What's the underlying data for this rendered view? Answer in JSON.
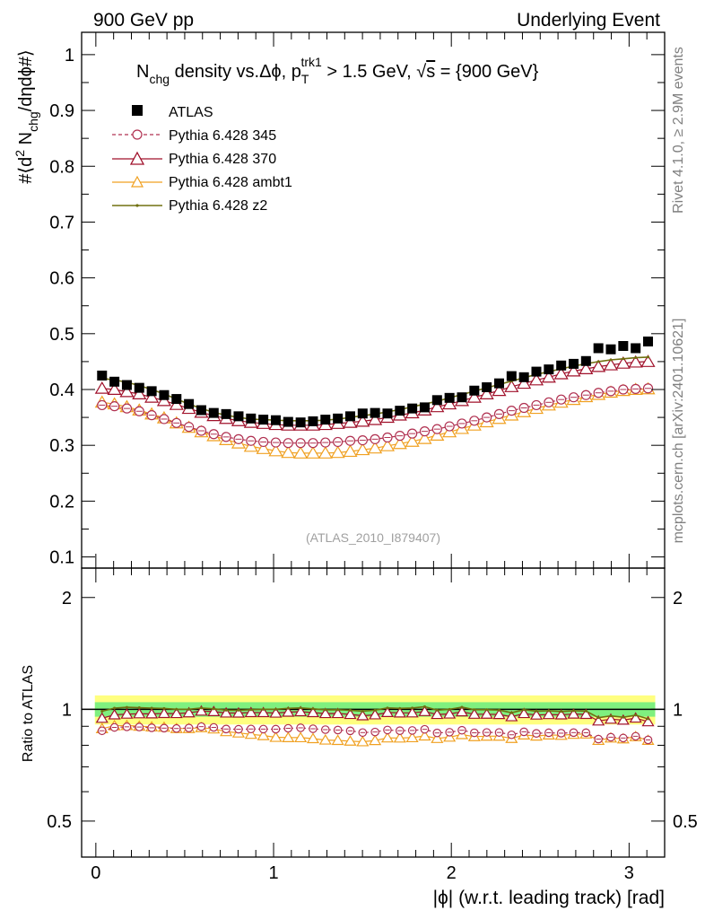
{
  "header": {
    "left": "900 GeV pp",
    "right": "Underlying Event"
  },
  "side_labels": {
    "rivet": "Rivet 4.1.0, ≥ 2.9M events",
    "mcplots": "mcplots.cern.ch [arXiv:2401.10621]"
  },
  "colors": {
    "atlas": "#000000",
    "p345": "#b03050",
    "p370": "#a0102a",
    "ambt1": "#f0a020",
    "z2": "#707010",
    "band_inner": "#7ff07f",
    "band_outer": "#ffff80"
  },
  "chart_data": [
    {
      "type": "scatter",
      "title": {
        "part1": "N",
        "part1_sub": "chg",
        "part2": " density vs.Δϕ, p",
        "part2_sub": "T",
        "part2_sup": "trk1",
        "part3": " > 1.5 GeV, ",
        "sqrt": "√",
        "s": "s",
        "part4": " = {900 GeV}"
      },
      "ylabel": "#⟨d² N_chg/dηdϕ#⟩",
      "ylabel_parts": {
        "a": "#⟨d",
        "a_sup": "2",
        "b": " N",
        "b_sub": "chg",
        "c": "/dηdϕ#⟩"
      },
      "ylim": [
        0.08,
        1.04
      ],
      "yticks": [
        "0.1",
        "0.2",
        "0.3",
        "0.4",
        "0.5",
        "0.6",
        "0.7",
        "0.8",
        "0.9",
        "1"
      ],
      "xlim": [
        -0.08,
        3.2
      ],
      "watermark": "(ATLAS_2010_I879407)",
      "legend_position": "top-left",
      "x": [
        0.0349,
        0.1047,
        0.1745,
        0.2443,
        0.3142,
        0.384,
        0.4538,
        0.5236,
        0.5934,
        0.6632,
        0.733,
        0.8029,
        0.8727,
        0.9425,
        1.0123,
        1.0821,
        1.1519,
        1.2217,
        1.2915,
        1.3614,
        1.4312,
        1.501,
        1.5708,
        1.6406,
        1.7104,
        1.7802,
        1.85,
        1.9199,
        1.9897,
        2.0595,
        2.1293,
        2.1991,
        2.2689,
        2.3387,
        2.4086,
        2.4784,
        2.5482,
        2.618,
        2.6878,
        2.7576,
        2.8274,
        2.8972,
        2.9671,
        3.0369,
        3.1067
      ],
      "series": [
        {
          "name": "ATLAS",
          "key": "atlas",
          "marker": "square",
          "values": [
            0.425,
            0.414,
            0.408,
            0.403,
            0.397,
            0.39,
            0.383,
            0.374,
            0.363,
            0.358,
            0.356,
            0.352,
            0.348,
            0.346,
            0.345,
            0.342,
            0.341,
            0.343,
            0.346,
            0.348,
            0.352,
            0.357,
            0.358,
            0.357,
            0.362,
            0.366,
            0.368,
            0.381,
            0.385,
            0.386,
            0.398,
            0.404,
            0.411,
            0.424,
            0.422,
            0.432,
            0.436,
            0.443,
            0.446,
            0.451,
            0.474,
            0.472,
            0.478,
            0.474,
            0.486
          ]
        },
        {
          "name": "Pythia 6.428 345",
          "key": "p345",
          "marker": "circle",
          "dashed": true,
          "values": [
            0.372,
            0.37,
            0.366,
            0.361,
            0.354,
            0.347,
            0.34,
            0.333,
            0.326,
            0.32,
            0.315,
            0.311,
            0.308,
            0.306,
            0.305,
            0.304,
            0.304,
            0.304,
            0.305,
            0.306,
            0.308,
            0.309,
            0.311,
            0.314,
            0.317,
            0.321,
            0.325,
            0.329,
            0.334,
            0.339,
            0.344,
            0.35,
            0.356,
            0.362,
            0.367,
            0.372,
            0.377,
            0.382,
            0.386,
            0.39,
            0.394,
            0.397,
            0.4,
            0.401,
            0.402
          ]
        },
        {
          "name": "Pythia 6.428 370",
          "key": "p370",
          "marker": "triangle",
          "values": [
            0.402,
            0.4,
            0.396,
            0.392,
            0.386,
            0.38,
            0.373,
            0.366,
            0.359,
            0.353,
            0.348,
            0.344,
            0.341,
            0.339,
            0.337,
            0.336,
            0.336,
            0.336,
            0.337,
            0.339,
            0.341,
            0.343,
            0.346,
            0.35,
            0.354,
            0.358,
            0.363,
            0.369,
            0.374,
            0.38,
            0.386,
            0.392,
            0.398,
            0.405,
            0.411,
            0.417,
            0.422,
            0.428,
            0.433,
            0.437,
            0.441,
            0.444,
            0.447,
            0.449,
            0.45
          ]
        },
        {
          "name": "Pythia 6.428 ambt1",
          "key": "ambt1",
          "marker": "triangle",
          "values": [
            0.377,
            0.374,
            0.369,
            0.363,
            0.356,
            0.349,
            0.34,
            0.332,
            0.324,
            0.317,
            0.31,
            0.304,
            0.298,
            0.294,
            0.29,
            0.287,
            0.286,
            0.286,
            0.286,
            0.287,
            0.289,
            0.292,
            0.295,
            0.299,
            0.303,
            0.307,
            0.312,
            0.318,
            0.324,
            0.33,
            0.336,
            0.342,
            0.348,
            0.354,
            0.36,
            0.366,
            0.372,
            0.377,
            0.382,
            0.387,
            0.391,
            0.395,
            0.398,
            0.4,
            0.401
          ]
        },
        {
          "name": "Pythia 6.428 z2",
          "key": "z2",
          "marker": "dot",
          "values": [
            0.42,
            0.417,
            0.413,
            0.407,
            0.4,
            0.392,
            0.383,
            0.374,
            0.366,
            0.359,
            0.354,
            0.35,
            0.347,
            0.346,
            0.345,
            0.344,
            0.344,
            0.344,
            0.345,
            0.347,
            0.35,
            0.353,
            0.356,
            0.36,
            0.364,
            0.369,
            0.374,
            0.379,
            0.385,
            0.391,
            0.397,
            0.403,
            0.409,
            0.415,
            0.421,
            0.427,
            0.432,
            0.437,
            0.442,
            0.446,
            0.45,
            0.453,
            0.455,
            0.457,
            0.458
          ]
        }
      ]
    },
    {
      "type": "line",
      "ylabel": "Ratio to ATLAS",
      "xlabel": "|ϕ| (w.r.t. leading track) [rad]",
      "ylim": [
        0.4,
        2.4
      ],
      "yscale": "log",
      "yticks": [
        "0.5",
        "1",
        "2"
      ],
      "yticks_right": [
        "0.5",
        "1",
        "2"
      ],
      "xlim": [
        -0.08,
        3.2
      ],
      "xticks": [
        "0",
        "1",
        "2",
        "3"
      ],
      "band_inner": [
        0.955,
        1.045
      ],
      "band_outer": [
        0.91,
        1.09
      ]
    }
  ]
}
